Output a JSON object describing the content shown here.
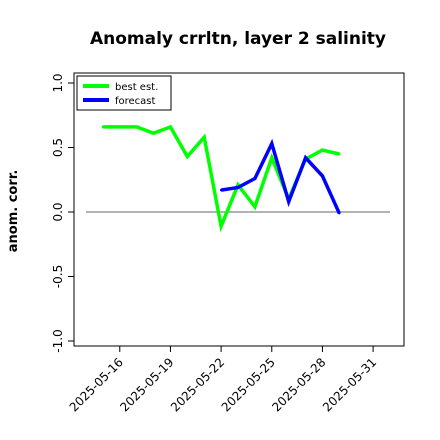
{
  "chart_data": {
    "type": "line",
    "title": "Anomaly crrltn, layer 2 salinity",
    "ylabel": "anom. corr.",
    "xlabel": "",
    "ylim": [
      -1.0,
      1.0
    ],
    "yticks": [
      -1.0,
      -0.5,
      0.0,
      0.5,
      1.0
    ],
    "ytick_labels": [
      "-1.0",
      "-0.5",
      "0.0",
      "0.5",
      "1.0"
    ],
    "xticks": [
      "2025-05-16",
      "2025-05-19",
      "2025-05-22",
      "2025-05-25",
      "2025-05-28",
      "2025-05-31"
    ],
    "xtick_label_colors": [
      "#000000",
      "#000000",
      "#008000",
      "#000000",
      "#000000",
      "#000000"
    ],
    "x_start": "2025-05-14",
    "x_end": "2025-06-01",
    "zero_line": 0.0,
    "legend_position": "top-left",
    "series": [
      {
        "name": "best est.",
        "color": "#00ff00",
        "x": [
          "2025-05-15",
          "2025-05-16",
          "2025-05-17",
          "2025-05-18",
          "2025-05-19",
          "2025-05-20",
          "2025-05-21",
          "2025-05-22",
          "2025-05-23",
          "2025-05-24",
          "2025-05-25",
          "2025-05-26",
          "2025-05-27",
          "2025-05-28",
          "2025-05-29"
        ],
        "values": [
          0.66,
          0.66,
          0.66,
          0.61,
          0.66,
          0.43,
          0.58,
          -0.11,
          0.21,
          0.04,
          0.42,
          0.1,
          0.41,
          0.48,
          0.45
        ]
      },
      {
        "name": "forecast",
        "color": "#0000ff",
        "x": [
          "2025-05-22",
          "2025-05-23",
          "2025-05-24",
          "2025-05-25",
          "2025-05-26",
          "2025-05-27",
          "2025-05-28",
          "2025-05-29"
        ],
        "values": [
          0.17,
          0.19,
          0.26,
          0.53,
          0.08,
          0.42,
          0.28,
          -0.01
        ]
      }
    ]
  }
}
